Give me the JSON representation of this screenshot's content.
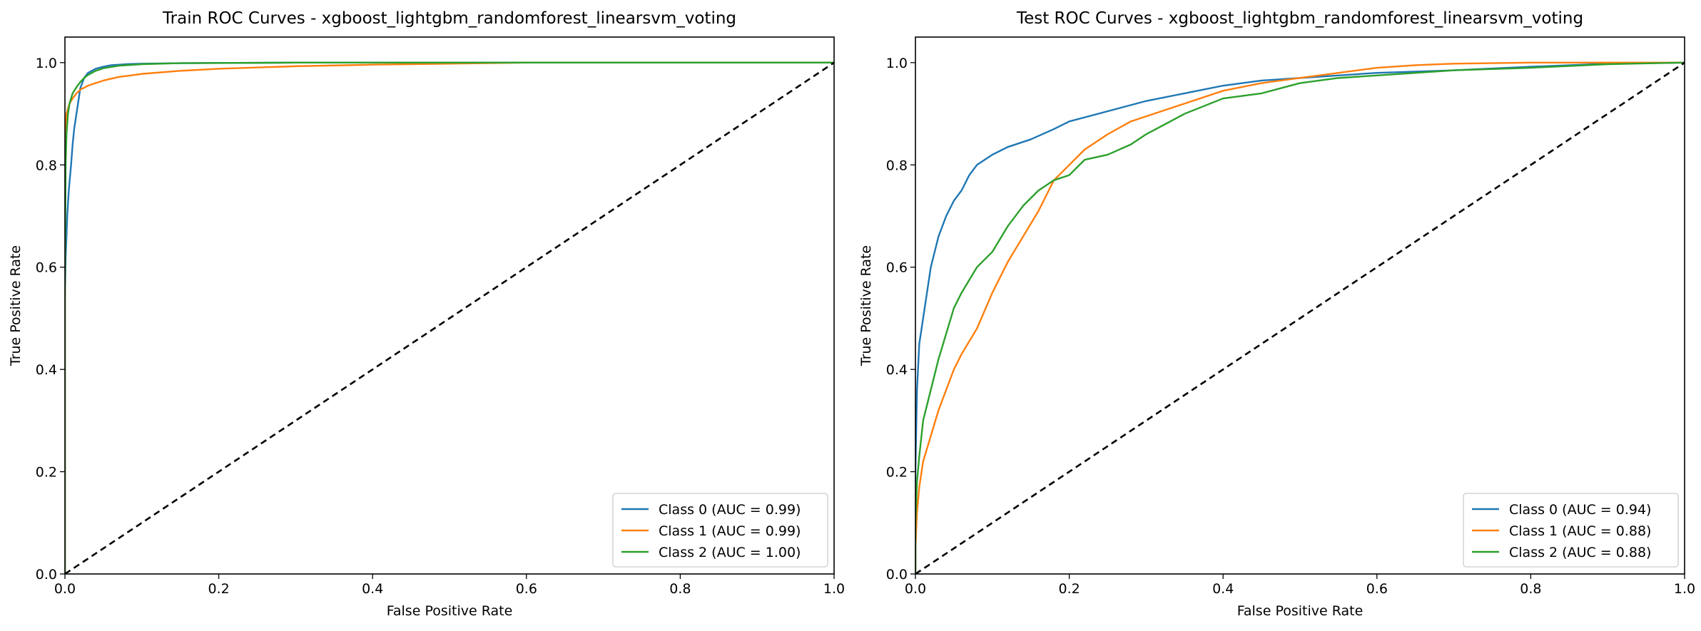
{
  "chart_data": [
    {
      "type": "line",
      "title": "Train ROC Curves - xgboost_lightgbm_randomforest_linearsvm_voting",
      "xlabel": "False Positive Rate",
      "ylabel": "True Positive Rate",
      "xlim": [
        0,
        1
      ],
      "ylim": [
        0,
        1.05
      ],
      "xticks": [
        "0.0",
        "0.2",
        "0.4",
        "0.6",
        "0.8",
        "1.0"
      ],
      "yticks": [
        "0.0",
        "0.2",
        "0.4",
        "0.6",
        "0.8",
        "1.0"
      ],
      "grid": false,
      "legend_position": "lower right",
      "series": [
        {
          "name": "Class 0 (AUC = 0.99)",
          "color": "#1f77b4",
          "x": [
            0,
            0,
            0.001,
            0.002,
            0.003,
            0.005,
            0.008,
            0.01,
            0.012,
            0.015,
            0.018,
            0.02,
            0.025,
            0.03,
            0.04,
            0.05,
            0.06,
            0.08,
            0.1,
            0.15,
            0.3,
            1.0
          ],
          "y": [
            0,
            0.54,
            0.62,
            0.66,
            0.7,
            0.75,
            0.8,
            0.84,
            0.87,
            0.9,
            0.93,
            0.95,
            0.97,
            0.98,
            0.988,
            0.992,
            0.995,
            0.997,
            0.998,
            0.999,
            1.0,
            1.0
          ]
        },
        {
          "name": "Class 1 (AUC = 0.99)",
          "color": "#ff7f0e",
          "x": [
            0,
            0,
            0.001,
            0.002,
            0.004,
            0.006,
            0.01,
            0.015,
            0.02,
            0.03,
            0.04,
            0.05,
            0.07,
            0.1,
            0.15,
            0.2,
            0.3,
            0.4,
            0.5,
            0.6,
            1.0
          ],
          "y": [
            0,
            0.85,
            0.88,
            0.9,
            0.91,
            0.92,
            0.93,
            0.94,
            0.947,
            0.955,
            0.96,
            0.965,
            0.972,
            0.978,
            0.984,
            0.988,
            0.993,
            0.996,
            0.998,
            1.0,
            1.0
          ]
        },
        {
          "name": "Class 2 (AUC = 1.00)",
          "color": "#2ca02c",
          "x": [
            0,
            0,
            0.001,
            0.002,
            0.004,
            0.006,
            0.008,
            0.01,
            0.015,
            0.02,
            0.025,
            0.03,
            0.04,
            0.05,
            0.07,
            0.1,
            0.15,
            0.3,
            1.0
          ],
          "y": [
            0,
            0.6,
            0.8,
            0.86,
            0.9,
            0.92,
            0.93,
            0.94,
            0.952,
            0.962,
            0.97,
            0.976,
            0.984,
            0.989,
            0.994,
            0.997,
            0.999,
            1.0,
            1.0
          ]
        },
        {
          "name": "",
          "color": "#000000",
          "dashed": true,
          "x": [
            0,
            1
          ],
          "y": [
            0,
            1
          ]
        }
      ]
    },
    {
      "type": "line",
      "title": "Test ROC Curves - xgboost_lightgbm_randomforest_linearsvm_voting",
      "xlabel": "False Positive Rate",
      "ylabel": "True Positive Rate",
      "xlim": [
        0,
        1
      ],
      "ylim": [
        0,
        1.05
      ],
      "xticks": [
        "0.0",
        "0.2",
        "0.4",
        "0.6",
        "0.8",
        "1.0"
      ],
      "yticks": [
        "0.0",
        "0.2",
        "0.4",
        "0.6",
        "0.8",
        "1.0"
      ],
      "grid": false,
      "legend_position": "lower right",
      "series": [
        {
          "name": "Class 0 (AUC = 0.94)",
          "color": "#1f77b4",
          "x": [
            0,
            0,
            0.002,
            0.005,
            0.01,
            0.015,
            0.02,
            0.03,
            0.04,
            0.05,
            0.06,
            0.07,
            0.08,
            0.1,
            0.12,
            0.15,
            0.18,
            0.2,
            0.25,
            0.3,
            0.35,
            0.4,
            0.45,
            0.5,
            0.55,
            0.6,
            0.7,
            0.8,
            0.9,
            1.0
          ],
          "y": [
            0,
            0.2,
            0.36,
            0.45,
            0.5,
            0.55,
            0.6,
            0.66,
            0.7,
            0.73,
            0.75,
            0.78,
            0.8,
            0.82,
            0.835,
            0.85,
            0.87,
            0.885,
            0.905,
            0.925,
            0.94,
            0.955,
            0.965,
            0.97,
            0.975,
            0.98,
            0.985,
            0.992,
            0.998,
            1.0
          ]
        },
        {
          "name": "Class 1 (AUC = 0.88)",
          "color": "#ff7f0e",
          "x": [
            0,
            0,
            0.002,
            0.005,
            0.01,
            0.02,
            0.03,
            0.04,
            0.05,
            0.06,
            0.08,
            0.1,
            0.12,
            0.14,
            0.16,
            0.18,
            0.2,
            0.22,
            0.25,
            0.28,
            0.3,
            0.35,
            0.4,
            0.45,
            0.5,
            0.55,
            0.6,
            0.65,
            0.7,
            0.8,
            1.0
          ],
          "y": [
            0,
            0.05,
            0.12,
            0.17,
            0.22,
            0.27,
            0.32,
            0.36,
            0.4,
            0.43,
            0.48,
            0.55,
            0.61,
            0.66,
            0.71,
            0.77,
            0.8,
            0.83,
            0.86,
            0.885,
            0.895,
            0.92,
            0.945,
            0.96,
            0.97,
            0.98,
            0.99,
            0.995,
            0.998,
            1.0,
            1.0
          ]
        },
        {
          "name": "Class 2 (AUC = 0.88)",
          "color": "#2ca02c",
          "x": [
            0,
            0,
            0.002,
            0.005,
            0.01,
            0.02,
            0.03,
            0.04,
            0.05,
            0.06,
            0.08,
            0.1,
            0.12,
            0.14,
            0.16,
            0.18,
            0.2,
            0.22,
            0.25,
            0.28,
            0.3,
            0.35,
            0.4,
            0.45,
            0.5,
            0.55,
            0.6,
            0.7,
            0.8,
            0.9,
            1.0
          ],
          "y": [
            0,
            0.1,
            0.18,
            0.23,
            0.3,
            0.36,
            0.42,
            0.47,
            0.52,
            0.55,
            0.6,
            0.63,
            0.68,
            0.72,
            0.75,
            0.77,
            0.78,
            0.81,
            0.82,
            0.84,
            0.86,
            0.9,
            0.93,
            0.94,
            0.96,
            0.97,
            0.975,
            0.985,
            0.99,
            0.997,
            1.0
          ]
        },
        {
          "name": "",
          "color": "#000000",
          "dashed": true,
          "x": [
            0,
            1
          ],
          "y": [
            0,
            1
          ]
        }
      ]
    }
  ]
}
